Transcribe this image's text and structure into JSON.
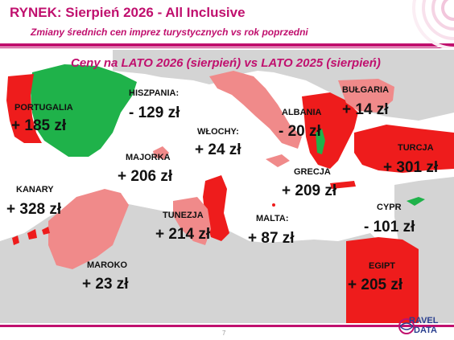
{
  "header": {
    "title": "RYNEK: Sierpień 2026 - All Inclusive",
    "subtitle": "Zmiany średnich cen imprez turystycznych vs rok poprzedni"
  },
  "map_title": "Ceny na LATO 2026 (sierpień) vs  LATO 2025 (sierpień)",
  "colors": {
    "accent": "#c0106e",
    "increase_strong": "#ee1c1c",
    "increase_mild": "#f08a8a",
    "decrease": "#1fb24a",
    "land": "#d4d4d4",
    "sea": "#ffffff"
  },
  "countries": {
    "portugalia": {
      "name": "PORTUGALIA",
      "value": "+ 185 zł"
    },
    "hiszpania": {
      "name": "HISZPANIA:",
      "value": "- 129 zł"
    },
    "wlochy": {
      "name": "WŁOCHY:",
      "value": "+ 24 zł"
    },
    "albania": {
      "name": "ALBANIA",
      "value": "- 20 zł"
    },
    "bulgaria": {
      "name": "BUŁGARIA",
      "value": "+ 14 zł"
    },
    "turcja": {
      "name": "TURCJA",
      "value": "+ 301 zł"
    },
    "majorka": {
      "name": "MAJORKA",
      "value": "+ 206 zł"
    },
    "grecja": {
      "name": "GRECJA",
      "value": "+ 209 zł"
    },
    "kanary": {
      "name": "KANARY",
      "value": "+ 328 zł"
    },
    "tunezja": {
      "name": "TUNEZJA",
      "value": "+ 214 zł"
    },
    "malta": {
      "name": "MALTA:",
      "value": "+ 87 zł"
    },
    "cypr": {
      "name": "CYPR",
      "value": "- 101 zł"
    },
    "maroko": {
      "name": "MAROKO",
      "value": "+ 23 zł"
    },
    "egipt": {
      "name": "EGIPT",
      "value": "+ 205 zł"
    }
  },
  "footer": {
    "page_number": "7",
    "logo_line1": "RAVEL",
    "logo_line2": "DATA"
  }
}
